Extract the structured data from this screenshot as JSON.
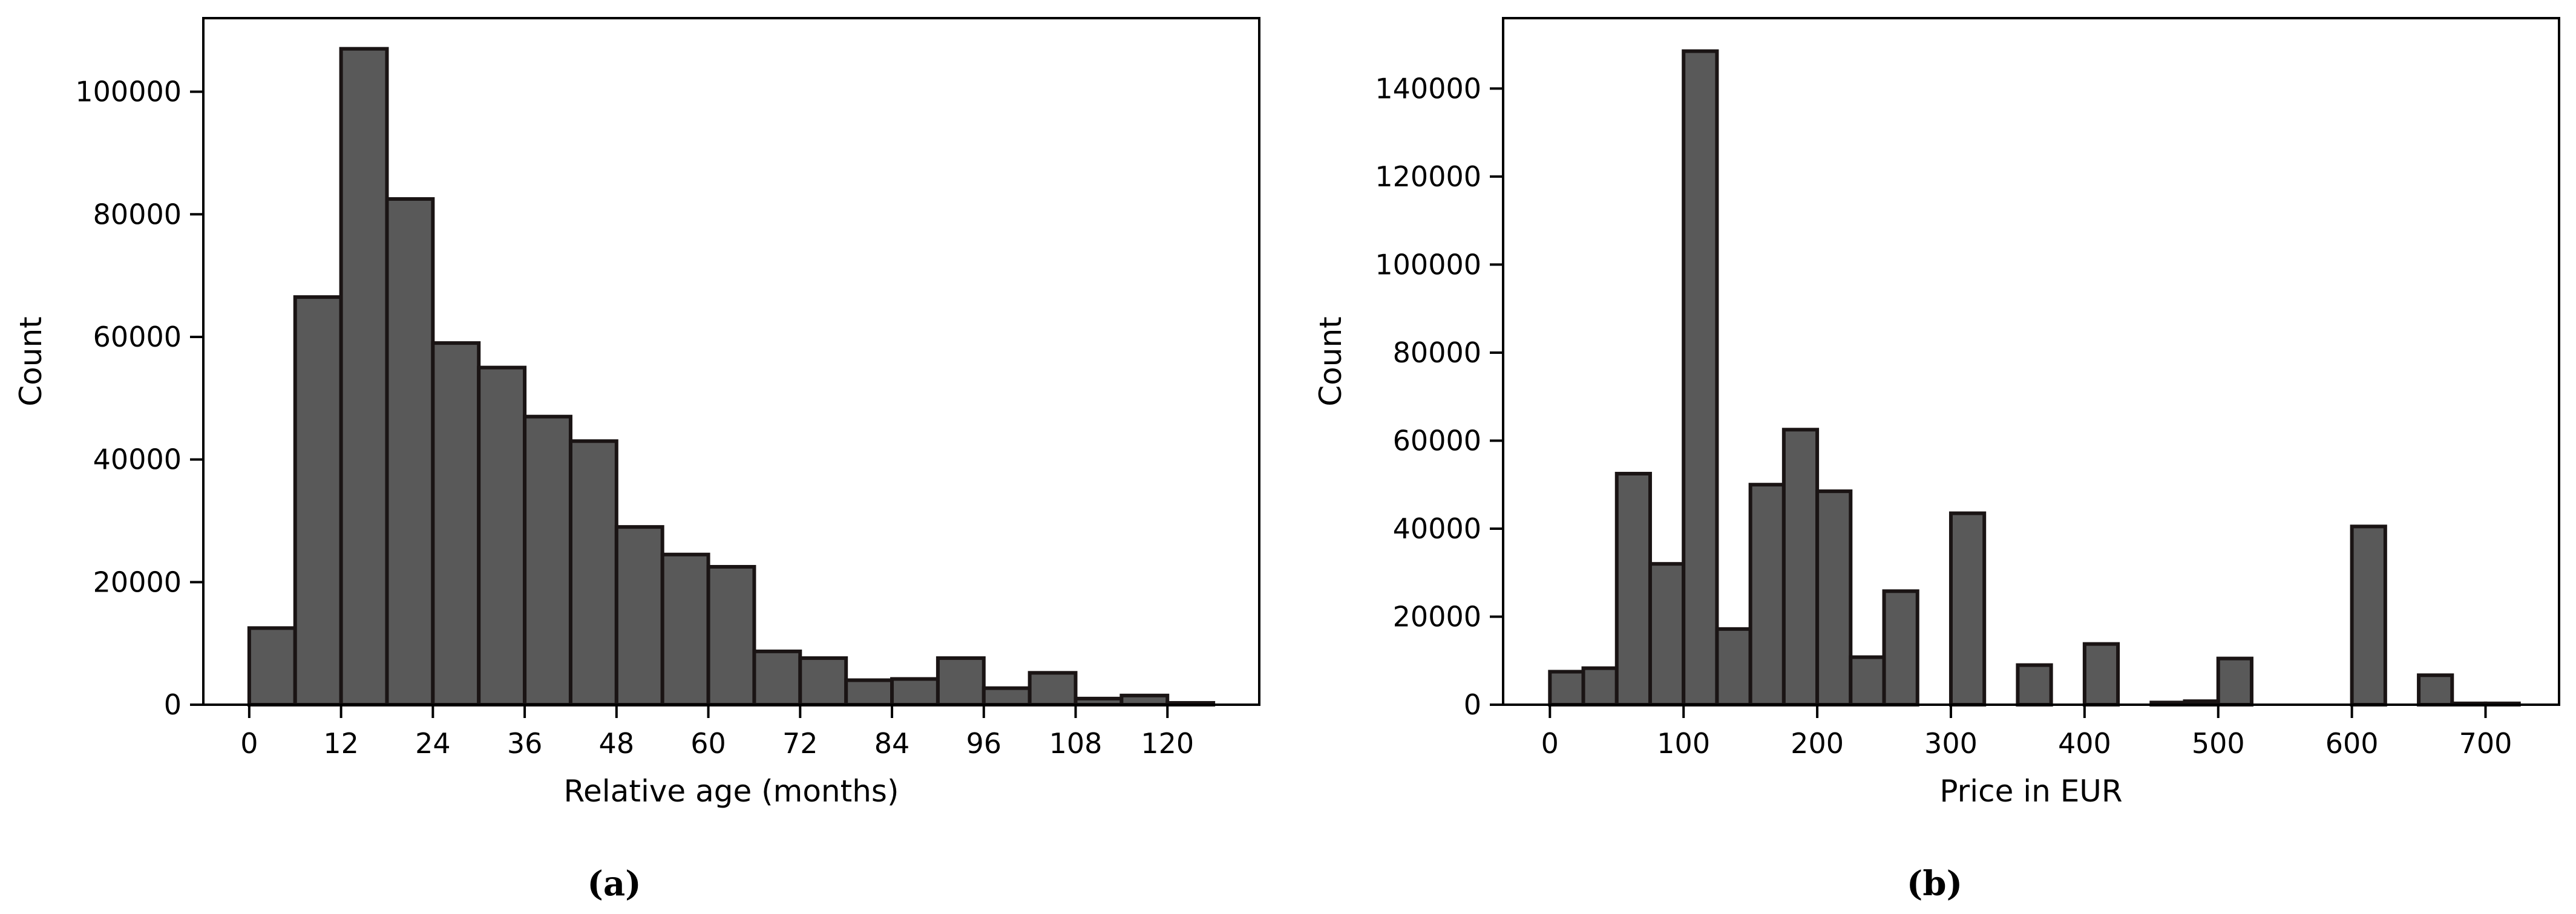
{
  "chart_data": [
    {
      "type": "bar",
      "caption": "(a)",
      "xlabel": "Relative age (months)",
      "ylabel": "Count",
      "bin_width": 6,
      "xlim": [
        -6,
        132
      ],
      "ylim": [
        0,
        112000
      ],
      "xticks": [
        0,
        12,
        24,
        36,
        48,
        60,
        72,
        84,
        96,
        108,
        120
      ],
      "yticks": [
        0,
        20000,
        40000,
        60000,
        80000,
        100000
      ],
      "bins": [
        {
          "start": 0,
          "value": 12500
        },
        {
          "start": 6,
          "value": 66500
        },
        {
          "start": 12,
          "value": 107000
        },
        {
          "start": 18,
          "value": 82500
        },
        {
          "start": 24,
          "value": 59000
        },
        {
          "start": 30,
          "value": 55000
        },
        {
          "start": 36,
          "value": 47000
        },
        {
          "start": 42,
          "value": 43000
        },
        {
          "start": 48,
          "value": 29000
        },
        {
          "start": 54,
          "value": 24500
        },
        {
          "start": 60,
          "value": 22500
        },
        {
          "start": 66,
          "value": 8700
        },
        {
          "start": 72,
          "value": 7600
        },
        {
          "start": 78,
          "value": 4000
        },
        {
          "start": 84,
          "value": 4200
        },
        {
          "start": 90,
          "value": 7600
        },
        {
          "start": 96,
          "value": 2700
        },
        {
          "start": 102,
          "value": 5200
        },
        {
          "start": 108,
          "value": 1000
        },
        {
          "start": 114,
          "value": 1500
        },
        {
          "start": 120,
          "value": 300
        }
      ],
      "grid": false
    },
    {
      "type": "bar",
      "caption": "(b)",
      "xlabel": "Price in EUR",
      "ylabel": "Count",
      "bin_width": 25,
      "xlim": [
        -35,
        755
      ],
      "ylim": [
        0,
        156000
      ],
      "xticks": [
        0,
        100,
        200,
        300,
        400,
        500,
        600,
        700
      ],
      "yticks": [
        0,
        20000,
        40000,
        60000,
        80000,
        100000,
        120000,
        140000
      ],
      "bins": [
        {
          "start": 0,
          "value": 7500
        },
        {
          "start": 25,
          "value": 8300
        },
        {
          "start": 50,
          "value": 52500
        },
        {
          "start": 75,
          "value": 32000
        },
        {
          "start": 100,
          "value": 148500
        },
        {
          "start": 125,
          "value": 17200
        },
        {
          "start": 150,
          "value": 50000
        },
        {
          "start": 175,
          "value": 62500
        },
        {
          "start": 200,
          "value": 48500
        },
        {
          "start": 225,
          "value": 10800
        },
        {
          "start": 250,
          "value": 25800
        },
        {
          "start": 300,
          "value": 43500
        },
        {
          "start": 350,
          "value": 9000
        },
        {
          "start": 400,
          "value": 13800
        },
        {
          "start": 450,
          "value": 500
        },
        {
          "start": 475,
          "value": 800
        },
        {
          "start": 500,
          "value": 10500
        },
        {
          "start": 600,
          "value": 40500
        },
        {
          "start": 650,
          "value": 6700
        },
        {
          "start": 675,
          "value": 300
        },
        {
          "start": 700,
          "value": 300
        }
      ],
      "grid": false
    }
  ]
}
